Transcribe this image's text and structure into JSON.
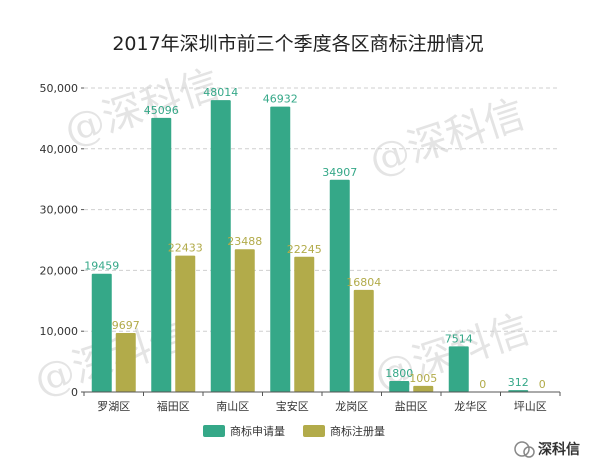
{
  "chart_data": {
    "type": "bar",
    "title": "2017年深圳市前三个季度各区商标注册情况",
    "categories": [
      "罗湖区",
      "福田区",
      "南山区",
      "宝安区",
      "龙岗区",
      "盐田区",
      "龙华区",
      "坪山区"
    ],
    "series": [
      {
        "name": "商标申请量",
        "color": "#35a888",
        "values": [
          19459,
          45096,
          48014,
          46932,
          34907,
          1800,
          7514,
          312
        ]
      },
      {
        "name": "商标注册量",
        "color": "#b2ab4a",
        "values": [
          9697,
          22433,
          23488,
          22245,
          16804,
          1005,
          0,
          0
        ]
      }
    ],
    "ylim": [
      0,
      50000
    ],
    "yticks": [
      "0",
      "10,000",
      "20,000",
      "30,000",
      "40,000",
      "50,000"
    ],
    "ytick_values": [
      0,
      10000,
      20000,
      30000,
      40000,
      50000
    ],
    "grid": true,
    "legend_position": "bottom-center",
    "watermark": "@深科信",
    "brand": "深科信"
  }
}
